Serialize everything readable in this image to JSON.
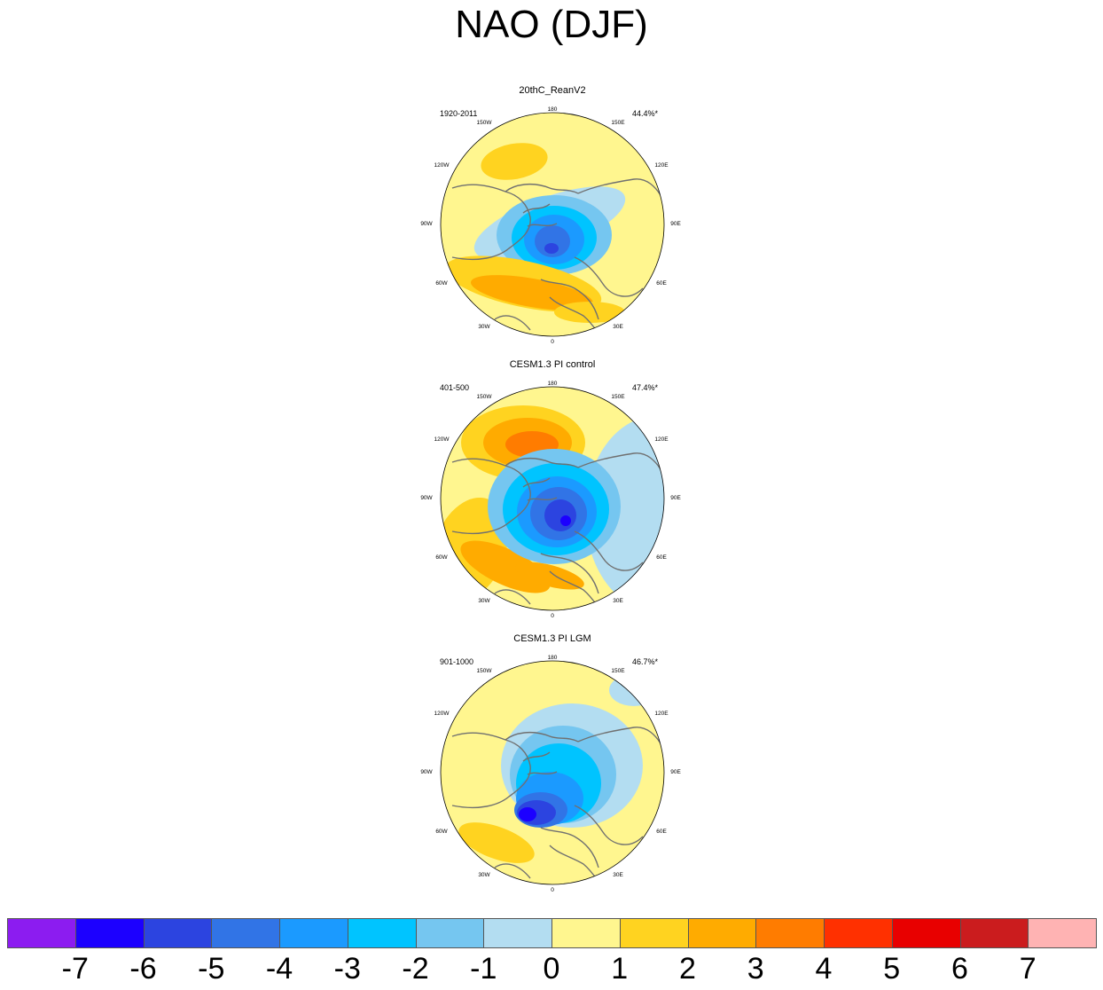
{
  "title": "NAO (DJF)",
  "panels": [
    {
      "title": "20thC_ReanV2",
      "years": "1920-2011",
      "variance": "44.4%*"
    },
    {
      "title": "CESM1.3 PI control",
      "years": "401-500",
      "variance": "47.4%*"
    },
    {
      "title": "CESM1.3 PI LGM",
      "years": "901-1000",
      "variance": "46.7%*"
    }
  ],
  "lon_labels": {
    "l180": "180",
    "l150w": "150W",
    "l150e": "150E",
    "l120w": "120W",
    "l120e": "120E",
    "l90w": "90W",
    "l90e": "90E",
    "l60w": "60W",
    "l60e": "60E",
    "l30w": "30W",
    "l30e": "30E",
    "l0": "0"
  },
  "colorbar": {
    "colors": [
      "#8c1cf0",
      "#1c00ff",
      "#2c44e0",
      "#3174e6",
      "#1b9aff",
      "#00c4ff",
      "#75c6f0",
      "#b3ddf1",
      "#fff68f",
      "#ffd320",
      "#ffab00",
      "#ff7c00",
      "#ff3000",
      "#e80000",
      "#cb1c1e",
      "#ffb3b3"
    ],
    "labels": [
      "-7",
      "-6",
      "-5",
      "-4",
      "-3",
      "-2",
      "-1",
      "0",
      "1",
      "2",
      "3",
      "4",
      "5",
      "6",
      "7"
    ]
  }
}
